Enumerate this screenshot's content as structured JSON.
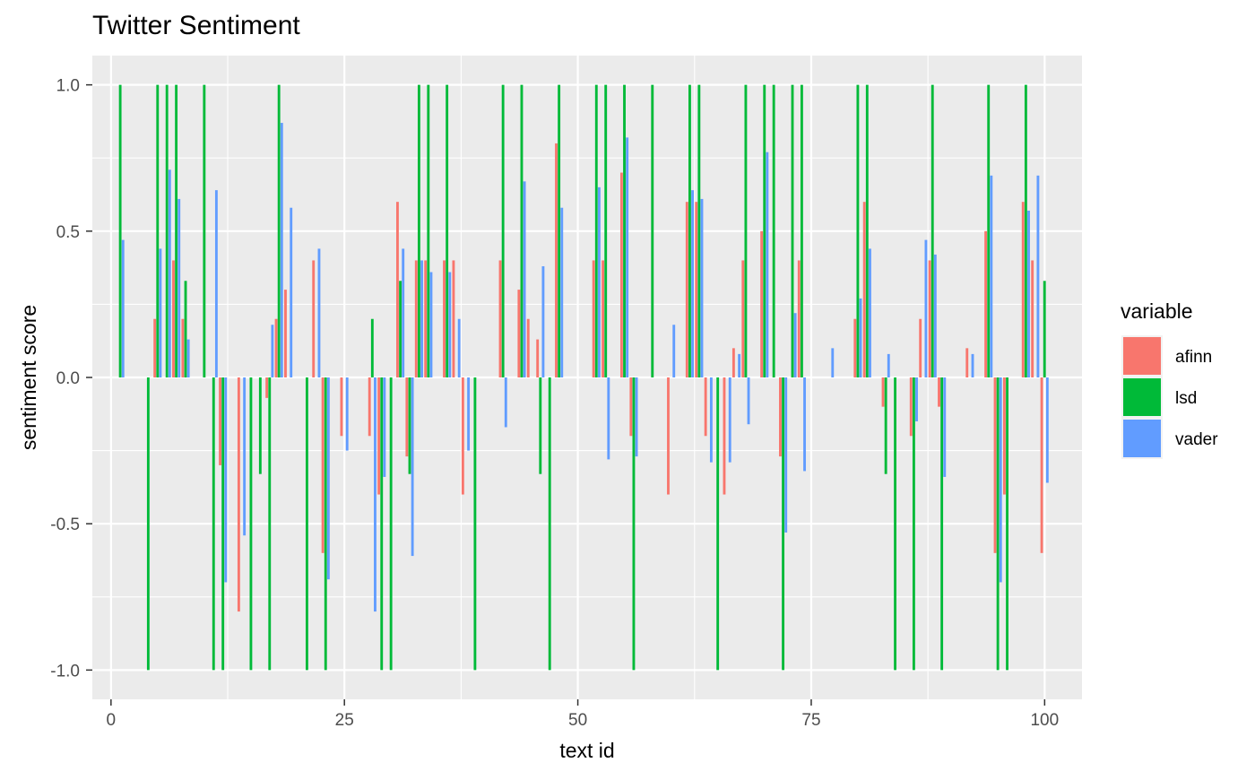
{
  "chart_data": {
    "type": "bar",
    "title": "Twitter Sentiment",
    "xlabel": "text id",
    "ylabel": "sentiment score",
    "xlim": [
      -2,
      104
    ],
    "ylim": [
      -1.1,
      1.1
    ],
    "x_ticks": [
      0,
      25,
      50,
      75,
      100
    ],
    "x_tick_labels": [
      "0",
      "25",
      "50",
      "75",
      "100"
    ],
    "y_ticks": [
      -1.0,
      -0.5,
      0.0,
      0.5,
      1.0
    ],
    "y_tick_labels": [
      "-1.0",
      "-0.5",
      "0.0",
      "0.5",
      "1.0"
    ],
    "grid": true,
    "legend_position": "right",
    "legend_title": "variable",
    "series": [
      {
        "name": "afinn",
        "color": "#F8766D",
        "points": [
          [
            5,
            0.2
          ],
          [
            7,
            0.4
          ],
          [
            8,
            0.2
          ],
          [
            12,
            -0.3
          ],
          [
            14,
            -0.8
          ],
          [
            17,
            -0.07
          ],
          [
            18,
            0.2
          ],
          [
            19,
            0.3
          ],
          [
            22,
            0.4
          ],
          [
            23,
            -0.6
          ],
          [
            25,
            -0.2
          ],
          [
            28,
            -0.2
          ],
          [
            29,
            -0.4
          ],
          [
            31,
            0.6
          ],
          [
            32,
            -0.27
          ],
          [
            33,
            0.4
          ],
          [
            34,
            0.4
          ],
          [
            36,
            0.4
          ],
          [
            37,
            0.4
          ],
          [
            38,
            -0.4
          ],
          [
            42,
            0.4
          ],
          [
            44,
            0.3
          ],
          [
            45,
            0.2
          ],
          [
            46,
            0.13
          ],
          [
            48,
            0.8
          ],
          [
            52,
            0.4
          ],
          [
            53,
            0.4
          ],
          [
            55,
            0.7
          ],
          [
            56,
            -0.2
          ],
          [
            60,
            -0.4
          ],
          [
            62,
            0.6
          ],
          [
            63,
            0.6
          ],
          [
            64,
            -0.2
          ],
          [
            66,
            -0.4
          ],
          [
            67,
            0.1
          ],
          [
            68,
            0.4
          ],
          [
            70,
            0.5
          ],
          [
            72,
            -0.27
          ],
          [
            74,
            0.4
          ],
          [
            80,
            0.2
          ],
          [
            81,
            0.6
          ],
          [
            83,
            -0.1
          ],
          [
            86,
            -0.2
          ],
          [
            87,
            0.2
          ],
          [
            88,
            0.4
          ],
          [
            89,
            -0.1
          ],
          [
            92,
            0.1
          ],
          [
            94,
            0.5
          ],
          [
            95,
            -0.6
          ],
          [
            96,
            -0.4
          ],
          [
            98,
            0.6
          ],
          [
            99,
            0.4
          ],
          [
            100,
            -0.6
          ]
        ]
      },
      {
        "name": "lsd",
        "color": "#00BA38",
        "points": [
          [
            1,
            1.0
          ],
          [
            4,
            -1.0
          ],
          [
            5,
            1.0
          ],
          [
            6,
            1.0
          ],
          [
            7,
            1.0
          ],
          [
            8,
            0.33
          ],
          [
            10,
            1.0
          ],
          [
            11,
            -1.0
          ],
          [
            12,
            -1.0
          ],
          [
            15,
            -1.0
          ],
          [
            16,
            -0.33
          ],
          [
            17,
            -1.0
          ],
          [
            18,
            1.0
          ],
          [
            21,
            -1.0
          ],
          [
            23,
            -1.0
          ],
          [
            28,
            0.2
          ],
          [
            29,
            -1.0
          ],
          [
            30,
            -1.0
          ],
          [
            31,
            0.33
          ],
          [
            32,
            -0.33
          ],
          [
            33,
            1.0
          ],
          [
            34,
            1.0
          ],
          [
            36,
            1.0
          ],
          [
            39,
            -1.0
          ],
          [
            42,
            1.0
          ],
          [
            44,
            1.0
          ],
          [
            46,
            -0.33
          ],
          [
            47,
            -1.0
          ],
          [
            48,
            1.0
          ],
          [
            52,
            1.0
          ],
          [
            53,
            1.0
          ],
          [
            55,
            1.0
          ],
          [
            56,
            -1.0
          ],
          [
            58,
            1.0
          ],
          [
            62,
            1.0
          ],
          [
            63,
            1.0
          ],
          [
            65,
            -1.0
          ],
          [
            68,
            1.0
          ],
          [
            70,
            1.0
          ],
          [
            71,
            1.0
          ],
          [
            72,
            -1.0
          ],
          [
            73,
            1.0
          ],
          [
            74,
            1.0
          ],
          [
            80,
            1.0
          ],
          [
            81,
            1.0
          ],
          [
            83,
            -0.33
          ],
          [
            84,
            -1.0
          ],
          [
            86,
            -1.0
          ],
          [
            88,
            1.0
          ],
          [
            89,
            -1.0
          ],
          [
            94,
            1.0
          ],
          [
            95,
            -1.0
          ],
          [
            96,
            -1.0
          ],
          [
            98,
            1.0
          ],
          [
            100,
            0.33
          ]
        ]
      },
      {
        "name": "vader",
        "color": "#619CFF",
        "points": [
          [
            1,
            0.47
          ],
          [
            5,
            0.44
          ],
          [
            6,
            0.71
          ],
          [
            7,
            0.61
          ],
          [
            8,
            0.13
          ],
          [
            11,
            0.64
          ],
          [
            12,
            -0.7
          ],
          [
            14,
            -0.54
          ],
          [
            17,
            0.18
          ],
          [
            18,
            0.87
          ],
          [
            19,
            0.58
          ],
          [
            22,
            0.44
          ],
          [
            23,
            -0.69
          ],
          [
            25,
            -0.25
          ],
          [
            28,
            -0.8
          ],
          [
            29,
            -0.34
          ],
          [
            31,
            0.44
          ],
          [
            32,
            -0.61
          ],
          [
            33,
            0.4
          ],
          [
            34,
            0.36
          ],
          [
            36,
            0.36
          ],
          [
            37,
            0.2
          ],
          [
            38,
            -0.25
          ],
          [
            42,
            -0.17
          ],
          [
            44,
            0.67
          ],
          [
            46,
            0.38
          ],
          [
            48,
            0.58
          ],
          [
            52,
            0.65
          ],
          [
            53,
            -0.28
          ],
          [
            55,
            0.82
          ],
          [
            56,
            -0.27
          ],
          [
            60,
            0.18
          ],
          [
            62,
            0.64
          ],
          [
            63,
            0.61
          ],
          [
            64,
            -0.29
          ],
          [
            66,
            -0.29
          ],
          [
            67,
            0.08
          ],
          [
            68,
            -0.16
          ],
          [
            70,
            0.77
          ],
          [
            72,
            -0.53
          ],
          [
            73,
            0.22
          ],
          [
            74,
            -0.32
          ],
          [
            77,
            0.1
          ],
          [
            80,
            0.27
          ],
          [
            81,
            0.44
          ],
          [
            83,
            0.08
          ],
          [
            86,
            -0.15
          ],
          [
            87,
            0.47
          ],
          [
            88,
            0.42
          ],
          [
            89,
            -0.34
          ],
          [
            92,
            0.08
          ],
          [
            94,
            0.69
          ],
          [
            95,
            -0.7
          ],
          [
            98,
            0.57
          ],
          [
            99,
            0.69
          ],
          [
            100,
            -0.36
          ]
        ]
      }
    ]
  }
}
